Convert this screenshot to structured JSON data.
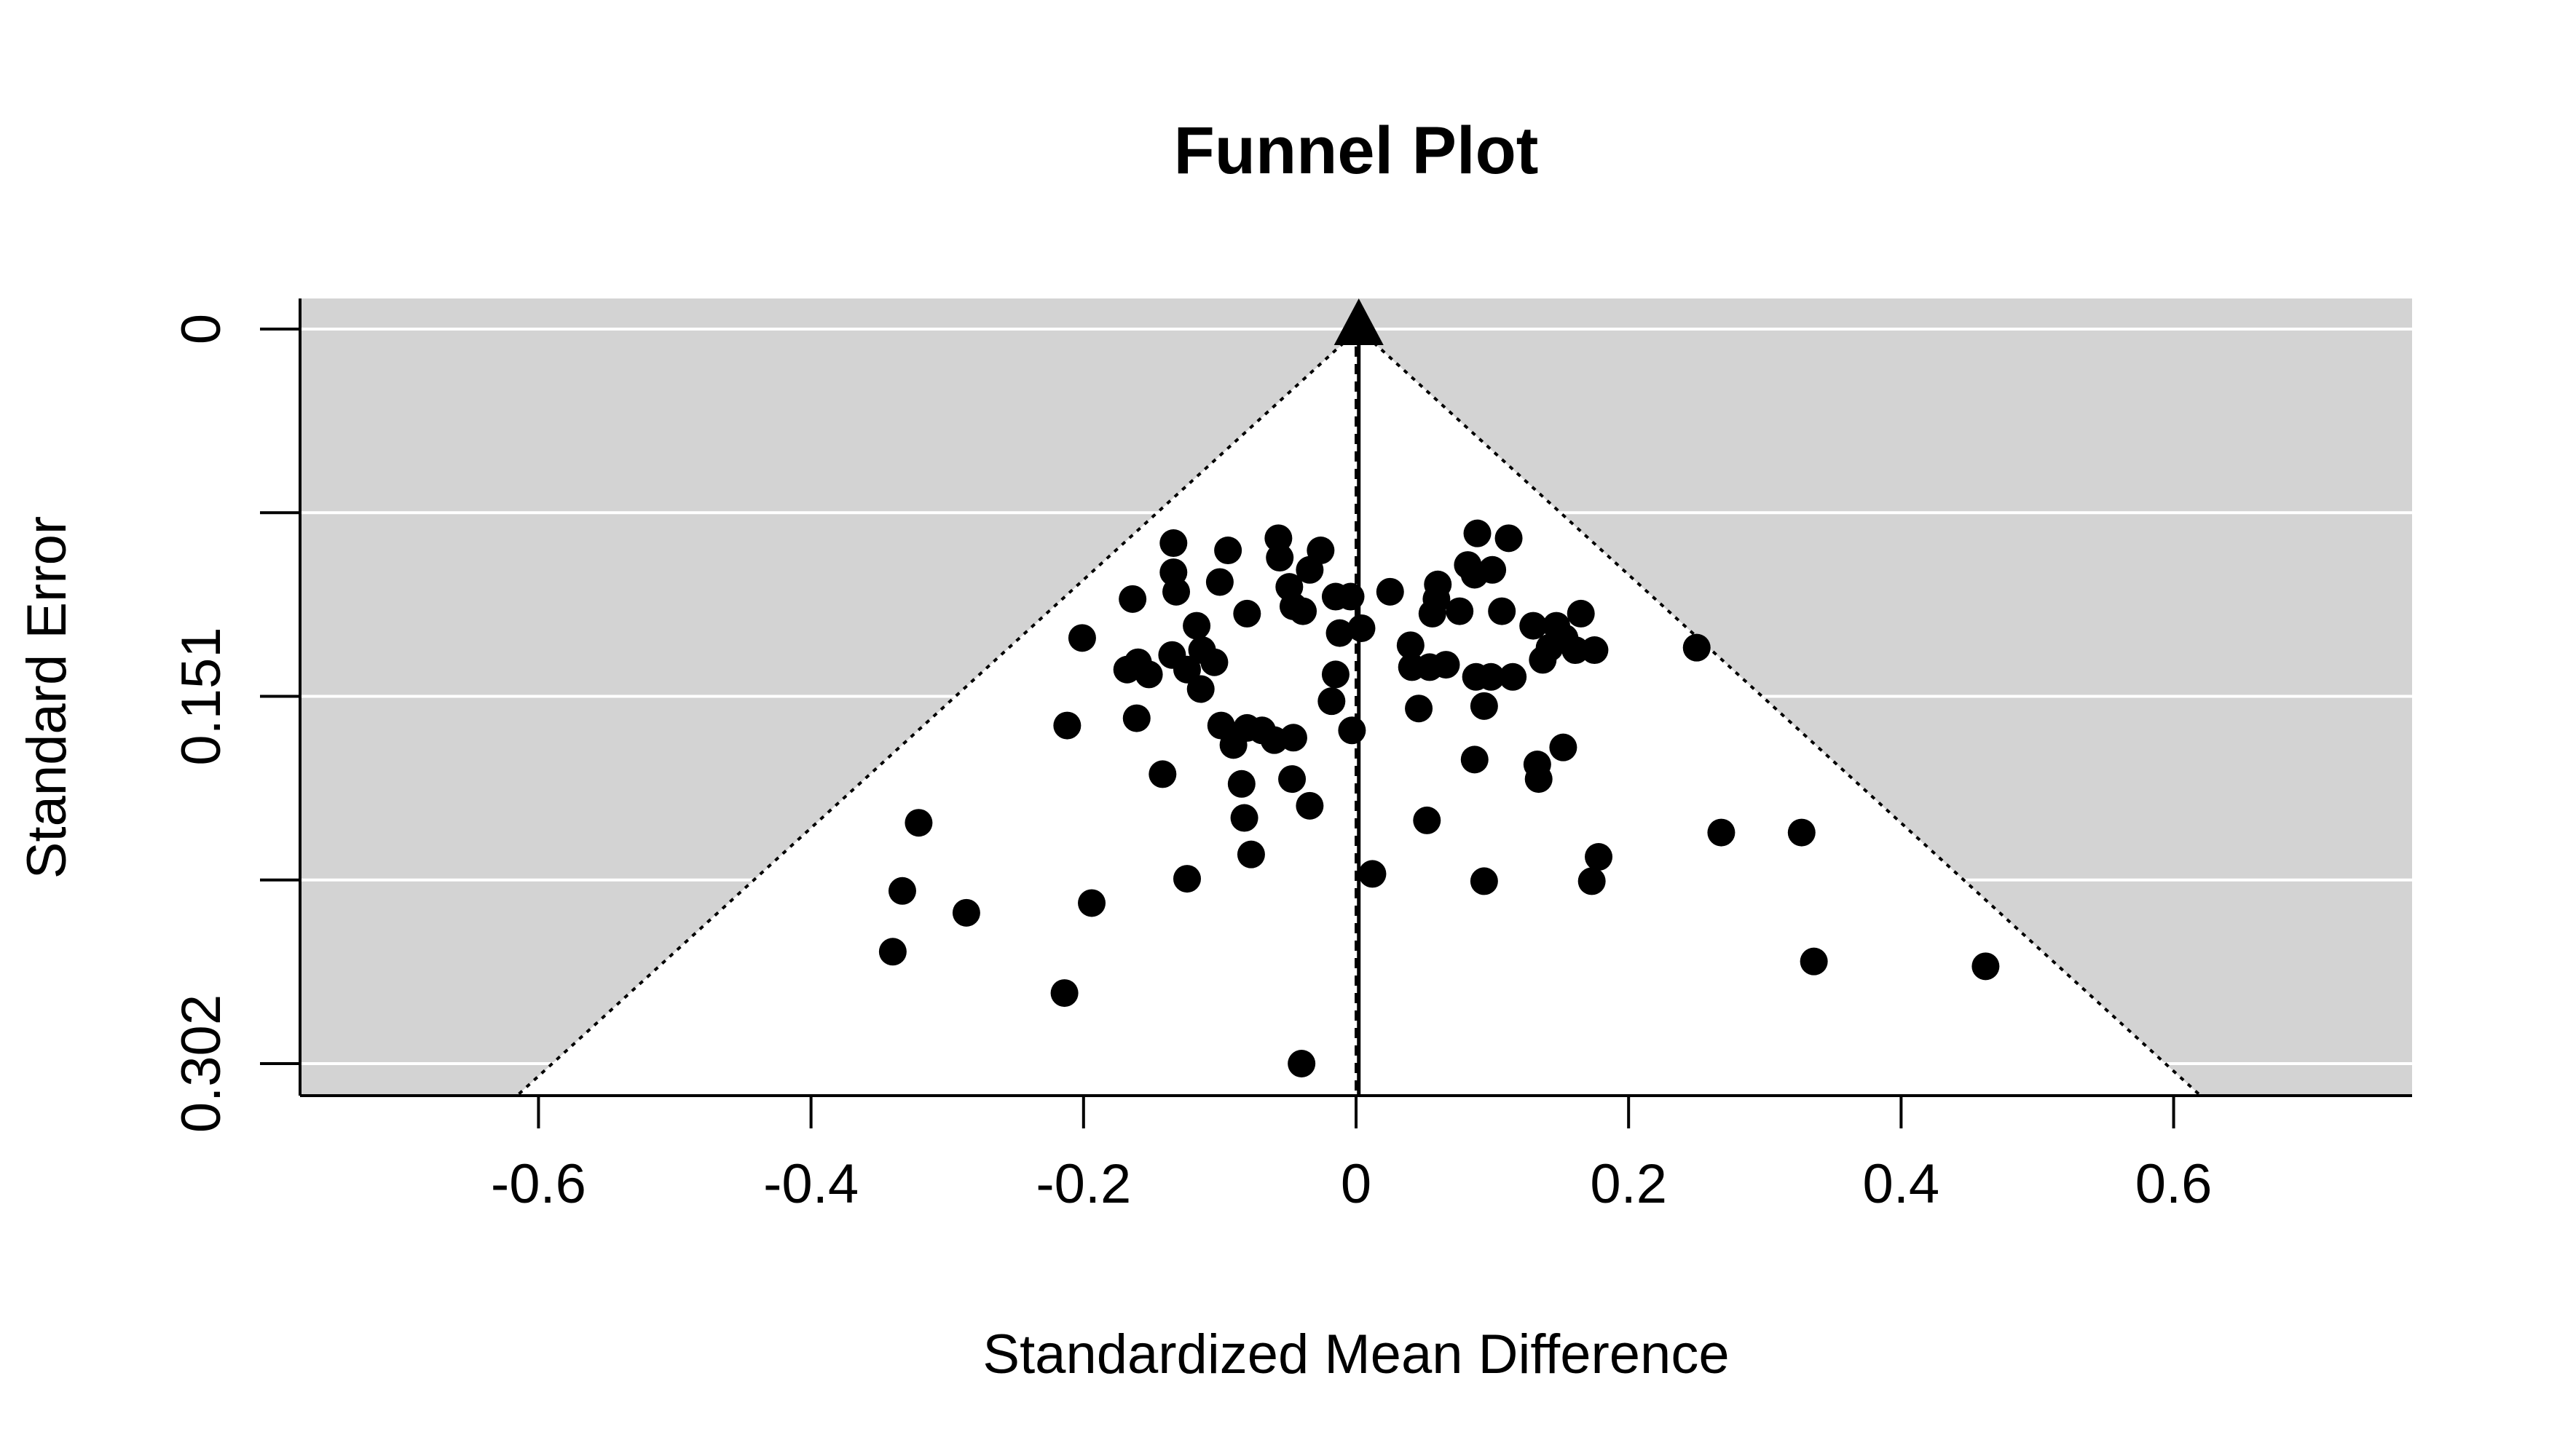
{
  "chart_data": {
    "type": "scatter",
    "title": "Funnel Plot",
    "xlabel": "Standardized Mean Difference",
    "ylabel": "Standard Error",
    "xlim": [
      -0.775,
      0.775
    ],
    "ylim": [
      0.302,
      0
    ],
    "x_ticks": [
      "-0.6",
      "-0.4",
      "-0.2",
      "0",
      "0.2",
      "0.4",
      "0.6"
    ],
    "x_tick_values": [
      -0.6,
      -0.4,
      -0.2,
      0,
      0.2,
      0.4,
      0.6
    ],
    "y_ticks": [
      "0",
      "0.151",
      "0.302"
    ],
    "y_tick_values": [
      0,
      0.151,
      0.302
    ],
    "y_gridlines": [
      0,
      0.0755,
      0.151,
      0.2265,
      0.302
    ],
    "summary_estimate": 0.002,
    "funnel_multiplier": 1.96,
    "background_color": "#d3d3d3",
    "funnel_color": "#ffffff",
    "point_color": "#000000",
    "points": [
      {
        "x": -0.134,
        "y": 0.088
      },
      {
        "x": -0.134,
        "y": 0.1
      },
      {
        "x": -0.132,
        "y": 0.108
      },
      {
        "x": -0.164,
        "y": 0.111
      },
      {
        "x": -0.094,
        "y": 0.091
      },
      {
        "x": -0.1,
        "y": 0.104
      },
      {
        "x": -0.08,
        "y": 0.117
      },
      {
        "x": -0.057,
        "y": 0.086
      },
      {
        "x": -0.056,
        "y": 0.094
      },
      {
        "x": -0.049,
        "y": 0.106
      },
      {
        "x": -0.046,
        "y": 0.114
      },
      {
        "x": -0.039,
        "y": 0.116
      },
      {
        "x": -0.034,
        "y": 0.099
      },
      {
        "x": -0.026,
        "y": 0.091
      },
      {
        "x": -0.015,
        "y": 0.11
      },
      {
        "x": -0.012,
        "y": 0.125
      },
      {
        "x": -0.004,
        "y": 0.11
      },
      {
        "x": 0.004,
        "y": 0.123
      },
      {
        "x": 0.025,
        "y": 0.108
      },
      {
        "x": -0.201,
        "y": 0.127
      },
      {
        "x": -0.117,
        "y": 0.122
      },
      {
        "x": -0.113,
        "y": 0.132
      },
      {
        "x": -0.104,
        "y": 0.137
      },
      {
        "x": -0.168,
        "y": 0.14
      },
      {
        "x": -0.16,
        "y": 0.137
      },
      {
        "x": -0.152,
        "y": 0.142
      },
      {
        "x": -0.135,
        "y": 0.134
      },
      {
        "x": -0.124,
        "y": 0.14
      },
      {
        "x": -0.114,
        "y": 0.148
      },
      {
        "x": -0.015,
        "y": 0.142
      },
      {
        "x": -0.018,
        "y": 0.153
      },
      {
        "x": -0.003,
        "y": 0.165
      },
      {
        "x": -0.161,
        "y": 0.16
      },
      {
        "x": -0.212,
        "y": 0.163
      },
      {
        "x": -0.099,
        "y": 0.163
      },
      {
        "x": -0.09,
        "y": 0.171
      },
      {
        "x": -0.08,
        "y": 0.164
      },
      {
        "x": -0.069,
        "y": 0.165
      },
      {
        "x": -0.06,
        "y": 0.169
      },
      {
        "x": -0.046,
        "y": 0.168
      },
      {
        "x": -0.142,
        "y": 0.183
      },
      {
        "x": -0.084,
        "y": 0.187
      },
      {
        "x": -0.082,
        "y": 0.201
      },
      {
        "x": -0.047,
        "y": 0.185
      },
      {
        "x": -0.034,
        "y": 0.196
      },
      {
        "x": -0.077,
        "y": 0.216
      },
      {
        "x": -0.124,
        "y": 0.226
      },
      {
        "x": 0.089,
        "y": 0.084
      },
      {
        "x": 0.112,
        "y": 0.086
      },
      {
        "x": 0.082,
        "y": 0.097
      },
      {
        "x": 0.087,
        "y": 0.101
      },
      {
        "x": 0.1,
        "y": 0.099
      },
      {
        "x": 0.06,
        "y": 0.105
      },
      {
        "x": 0.059,
        "y": 0.111
      },
      {
        "x": 0.056,
        "y": 0.117
      },
      {
        "x": 0.076,
        "y": 0.116
      },
      {
        "x": 0.107,
        "y": 0.116
      },
      {
        "x": 0.13,
        "y": 0.122
      },
      {
        "x": 0.147,
        "y": 0.122
      },
      {
        "x": 0.165,
        "y": 0.117
      },
      {
        "x": 0.153,
        "y": 0.127
      },
      {
        "x": 0.142,
        "y": 0.131
      },
      {
        "x": 0.161,
        "y": 0.132
      },
      {
        "x": 0.175,
        "y": 0.132
      },
      {
        "x": 0.137,
        "y": 0.136
      },
      {
        "x": 0.04,
        "y": 0.13
      },
      {
        "x": 0.041,
        "y": 0.139
      },
      {
        "x": 0.054,
        "y": 0.139
      },
      {
        "x": 0.066,
        "y": 0.138
      },
      {
        "x": 0.088,
        "y": 0.143
      },
      {
        "x": 0.099,
        "y": 0.143
      },
      {
        "x": 0.115,
        "y": 0.143
      },
      {
        "x": 0.046,
        "y": 0.156
      },
      {
        "x": 0.094,
        "y": 0.155
      },
      {
        "x": 0.25,
        "y": 0.131
      },
      {
        "x": 0.087,
        "y": 0.177
      },
      {
        "x": 0.152,
        "y": 0.172
      },
      {
        "x": 0.133,
        "y": 0.179
      },
      {
        "x": 0.134,
        "y": 0.185
      },
      {
        "x": 0.052,
        "y": 0.202
      },
      {
        "x": 0.178,
        "y": 0.217
      },
      {
        "x": 0.173,
        "y": 0.227
      },
      {
        "x": 0.094,
        "y": 0.227
      },
      {
        "x": 0.012,
        "y": 0.224
      },
      {
        "x": 0.268,
        "y": 0.207
      },
      {
        "x": 0.327,
        "y": 0.207
      },
      {
        "x": 0.336,
        "y": 0.26
      },
      {
        "x": 0.462,
        "y": 0.262
      },
      {
        "x": -0.321,
        "y": 0.203
      },
      {
        "x": -0.333,
        "y": 0.231
      },
      {
        "x": -0.286,
        "y": 0.24
      },
      {
        "x": -0.34,
        "y": 0.256
      },
      {
        "x": -0.194,
        "y": 0.236
      },
      {
        "x": -0.214,
        "y": 0.273
      },
      {
        "x": -0.04,
        "y": 0.302
      }
    ]
  }
}
